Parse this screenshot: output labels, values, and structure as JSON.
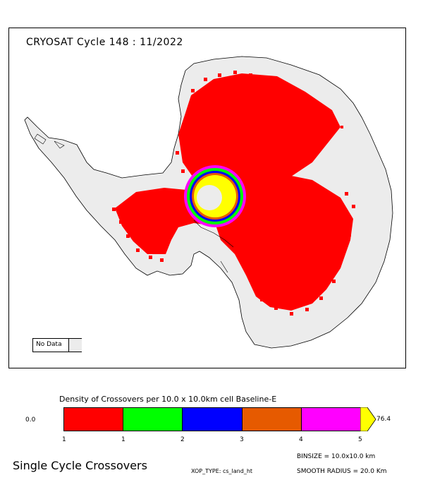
{
  "map": {
    "title": "CRYOSAT Cycle 148 : 11/2022",
    "nodata_label": "No Data",
    "nodata_color": "#ececec",
    "land_color": "#ececec"
  },
  "legend": {
    "title": "Density of Crossovers per  10.0 x  10.0km cell Baseline-E",
    "min_label": "0.0",
    "max_label": "76.4",
    "ticks": [
      "1",
      "1",
      "2",
      "3",
      "4",
      "5"
    ],
    "colors": [
      "#ff0000",
      "#00ff00",
      "#0000ff",
      "#e65a00",
      "#ff00ff",
      "#ffff00"
    ]
  },
  "footer": {
    "main_label": "Single Cycle Crossovers",
    "binsize": "BINSIZE = 10.0x10.0 km",
    "xop_type": "XOP_TYPE: cs_land_ht",
    "smooth_radius": "SMOOTH RADIUS =  20.0 Km"
  }
}
